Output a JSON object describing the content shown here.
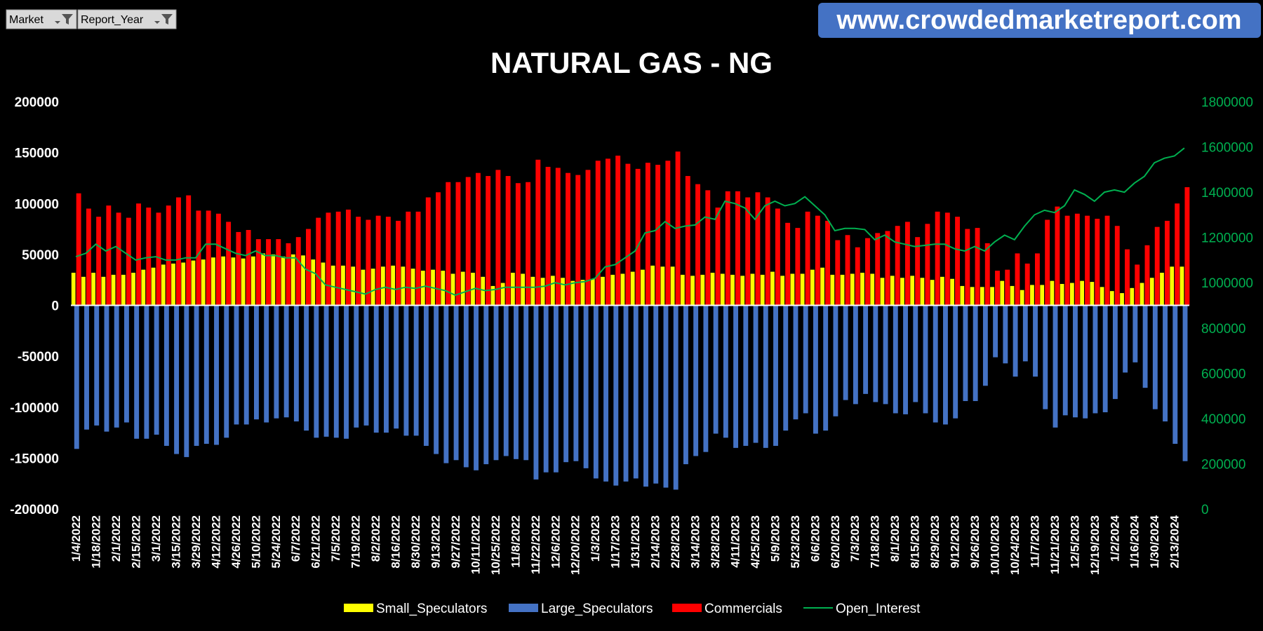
{
  "filters": [
    "Market",
    "Report_Year"
  ],
  "watermark": "www.crowdedmarketreport.com",
  "chart_data": {
    "type": "bar",
    "title": "NATURAL GAS - NG",
    "legend": "bottom",
    "categories": [
      "1/4/2022",
      null,
      "1/18/2022",
      null,
      "2/1/2022",
      null,
      "2/15/2022",
      null,
      "3/1/2022",
      null,
      "3/15/2022",
      null,
      "3/29/2022",
      null,
      "4/12/2022",
      null,
      "4/26/2022",
      null,
      "5/10/2022",
      null,
      "5/24/2022",
      null,
      "6/7/2022",
      null,
      "6/21/2022",
      null,
      "7/5/2022",
      null,
      "7/19/2022",
      null,
      "8/2/2022",
      null,
      "8/16/2022",
      null,
      "8/30/2022",
      null,
      "9/13/2022",
      null,
      "9/27/2022",
      null,
      "10/11/2022",
      null,
      "10/25/2022",
      null,
      "11/8/2022",
      null,
      "11/22/2022",
      null,
      "12/6/2022",
      null,
      "12/20/2022",
      null,
      "1/3/2023",
      null,
      "1/17/2023",
      null,
      "1/31/2023",
      null,
      "2/14/2023",
      null,
      "2/28/2023",
      null,
      "3/14/2023",
      null,
      "3/28/2023",
      null,
      "4/11/2023",
      null,
      "4/25/2023",
      null,
      "5/9/2023",
      null,
      "5/23/2023",
      null,
      "6/6/2023",
      null,
      "6/20/2023",
      null,
      "7/3/2023",
      null,
      "7/18/2023",
      null,
      "8/1/2023",
      null,
      "8/15/2023",
      null,
      "8/29/2023",
      null,
      "9/12/2023",
      null,
      "9/26/2023",
      null,
      "10/10/2023",
      null,
      "10/24/2023",
      null,
      "11/7/2023",
      null,
      "11/21/2023",
      null,
      "12/5/2023",
      null,
      "12/19/2023",
      null,
      "1/2/2024",
      null,
      "1/16/2024",
      null,
      "1/30/2024",
      null,
      "2/13/2024",
      null
    ],
    "series": [
      {
        "name": "Small_Speculators",
        "color": "#ffff00",
        "values": [
          32000,
          28000,
          32000,
          28000,
          30000,
          30000,
          32000,
          35000,
          37000,
          40000,
          41000,
          42000,
          44000,
          45000,
          47000,
          48000,
          47000,
          46000,
          48000,
          51000,
          50000,
          48000,
          50000,
          49000,
          45000,
          42000,
          39000,
          39000,
          38000,
          35000,
          36000,
          38000,
          39000,
          38000,
          36000,
          34000,
          35000,
          34000,
          31000,
          33000,
          32000,
          28000,
          19000,
          22000,
          32000,
          31000,
          28000,
          27000,
          29000,
          27000,
          24000,
          25000,
          26000,
          28000,
          30000,
          31000,
          33000,
          35000,
          39000,
          38000,
          38000,
          30000,
          29000,
          30000,
          32000,
          31000,
          30000,
          29000,
          31000,
          30000,
          33000,
          29000,
          31000,
          31000,
          35000,
          37000,
          30000,
          30000,
          31000,
          32000,
          31000,
          27000,
          29000,
          27000,
          29000,
          27000,
          25000,
          28000,
          26000,
          19000,
          18000,
          18000,
          18000,
          24000,
          19000,
          15000,
          20000,
          20000,
          24000,
          21000,
          22000,
          24000,
          23000,
          18000,
          14000,
          12000,
          17000,
          22000,
          27000,
          32000,
          38000,
          38000
        ]
      },
      {
        "name": "Large_Speculators",
        "color": "#4472c4",
        "values": [
          -141000,
          -122000,
          -118000,
          -124000,
          -120000,
          -115000,
          -131000,
          -131000,
          -127000,
          -138000,
          -146000,
          -149000,
          -138000,
          -136000,
          -137000,
          -130000,
          -117000,
          -117000,
          -112000,
          -115000,
          -111000,
          -110000,
          -114000,
          -123000,
          -130000,
          -129000,
          -130000,
          -131000,
          -120000,
          -118000,
          -125000,
          -125000,
          -121000,
          -128000,
          -128000,
          -138000,
          -146000,
          -155000,
          -152000,
          -159000,
          -162000,
          -156000,
          -152000,
          -148000,
          -151000,
          -152000,
          -171000,
          -164000,
          -164000,
          -154000,
          -153000,
          -160000,
          -170000,
          -173000,
          -177000,
          -173000,
          -170000,
          -178000,
          -175000,
          -179000,
          -181000,
          -156000,
          -148000,
          -144000,
          -126000,
          -130000,
          -140000,
          -138000,
          -135000,
          -140000,
          -138000,
          -123000,
          -112000,
          -106000,
          -126000,
          -123000,
          -109000,
          -93000,
          -97000,
          -87000,
          -95000,
          -97000,
          -106000,
          -107000,
          -95000,
          -106000,
          -115000,
          -117000,
          -111000,
          -94000,
          -94000,
          -79000,
          -51000,
          -57000,
          -70000,
          -55000,
          -70000,
          -102000,
          -120000,
          -108000,
          -110000,
          -111000,
          -106000,
          -105000,
          -92000,
          -66000,
          -56000,
          -81000,
          -102000,
          -114000,
          -136000,
          -153000
        ]
      },
      {
        "name": "Commercials",
        "color": "#ff0000",
        "values": [
          110000,
          95000,
          87000,
          98000,
          91000,
          86000,
          100000,
          96000,
          91000,
          98000,
          106000,
          108000,
          93000,
          93000,
          90000,
          82000,
          72000,
          74000,
          65000,
          65000,
          65000,
          61000,
          67000,
          75000,
          86000,
          91000,
          92000,
          94000,
          87000,
          84000,
          88000,
          87000,
          83000,
          92000,
          92000,
          106000,
          111000,
          121000,
          121000,
          126000,
          130000,
          127000,
          133000,
          127000,
          120000,
          121000,
          143000,
          136000,
          135000,
          130000,
          128000,
          133000,
          142000,
          144000,
          147000,
          139000,
          134000,
          140000,
          138000,
          142000,
          151000,
          127000,
          119000,
          113000,
          96000,
          112000,
          112000,
          106000,
          111000,
          106000,
          95000,
          81000,
          76000,
          92000,
          88000,
          83000,
          64000,
          69000,
          57000,
          66000,
          71000,
          73000,
          78000,
          82000,
          67000,
          80000,
          92000,
          91000,
          87000,
          75000,
          76000,
          61000,
          34000,
          35000,
          51000,
          41000,
          51000,
          84000,
          97000,
          88000,
          90000,
          88000,
          85000,
          88000,
          78000,
          55000,
          40000,
          59000,
          77000,
          83000,
          100000,
          116000
        ]
      },
      {
        "name": "Open_Interest",
        "color": "#00b050",
        "axis": "y2",
        "values": [
          1115000,
          1130000,
          1170000,
          1140000,
          1160000,
          1130000,
          1100000,
          1110000,
          1115000,
          1100000,
          1100000,
          1110000,
          1110000,
          1170000,
          1170000,
          1150000,
          1130000,
          1120000,
          1140000,
          1120000,
          1120000,
          1110000,
          1110000,
          1060000,
          1040000,
          990000,
          980000,
          970000,
          960000,
          950000,
          970000,
          980000,
          970000,
          980000,
          975000,
          985000,
          975000,
          965000,
          945000,
          960000,
          975000,
          965000,
          970000,
          980000,
          980000,
          980000,
          980000,
          985000,
          1000000,
          990000,
          1000000,
          1005000,
          1020000,
          1070000,
          1080000,
          1110000,
          1140000,
          1220000,
          1230000,
          1270000,
          1240000,
          1250000,
          1255000,
          1290000,
          1280000,
          1360000,
          1350000,
          1330000,
          1280000,
          1340000,
          1360000,
          1340000,
          1350000,
          1380000,
          1340000,
          1300000,
          1230000,
          1240000,
          1240000,
          1235000,
          1190000,
          1210000,
          1180000,
          1170000,
          1160000,
          1165000,
          1170000,
          1170000,
          1150000,
          1140000,
          1160000,
          1140000,
          1180000,
          1210000,
          1190000,
          1250000,
          1300000,
          1320000,
          1310000,
          1340000,
          1410000,
          1390000,
          1360000,
          1400000,
          1410000,
          1400000,
          1440000,
          1470000,
          1530000,
          1550000,
          1560000,
          1595000
        ]
      }
    ],
    "ylim": [
      -200000,
      200000
    ],
    "yticks": [
      -200000,
      -150000,
      -100000,
      -50000,
      0,
      50000,
      100000,
      150000,
      200000
    ],
    "y2lim": [
      0,
      1800000
    ],
    "y2ticks": [
      0,
      200000,
      400000,
      600000,
      800000,
      1000000,
      1200000,
      1400000,
      1600000,
      1800000
    ]
  }
}
